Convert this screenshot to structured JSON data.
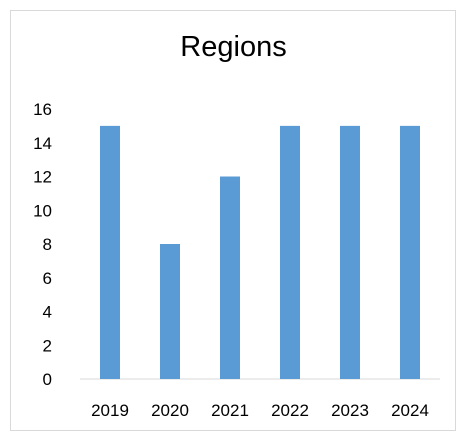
{
  "chart_data": {
    "type": "bar",
    "title": "Regions",
    "categories": [
      "2019",
      "2020",
      "2021",
      "2022",
      "2023",
      "2024"
    ],
    "values": [
      15,
      8,
      12,
      15,
      15,
      15
    ],
    "ylim": [
      0,
      16
    ],
    "yticks": [
      0,
      2,
      4,
      6,
      8,
      10,
      12,
      14,
      16
    ],
    "grid": false,
    "legend": false,
    "colors": {
      "bar": "#5b9bd5",
      "axis": "#d9d9d9",
      "text": "#000000"
    }
  }
}
